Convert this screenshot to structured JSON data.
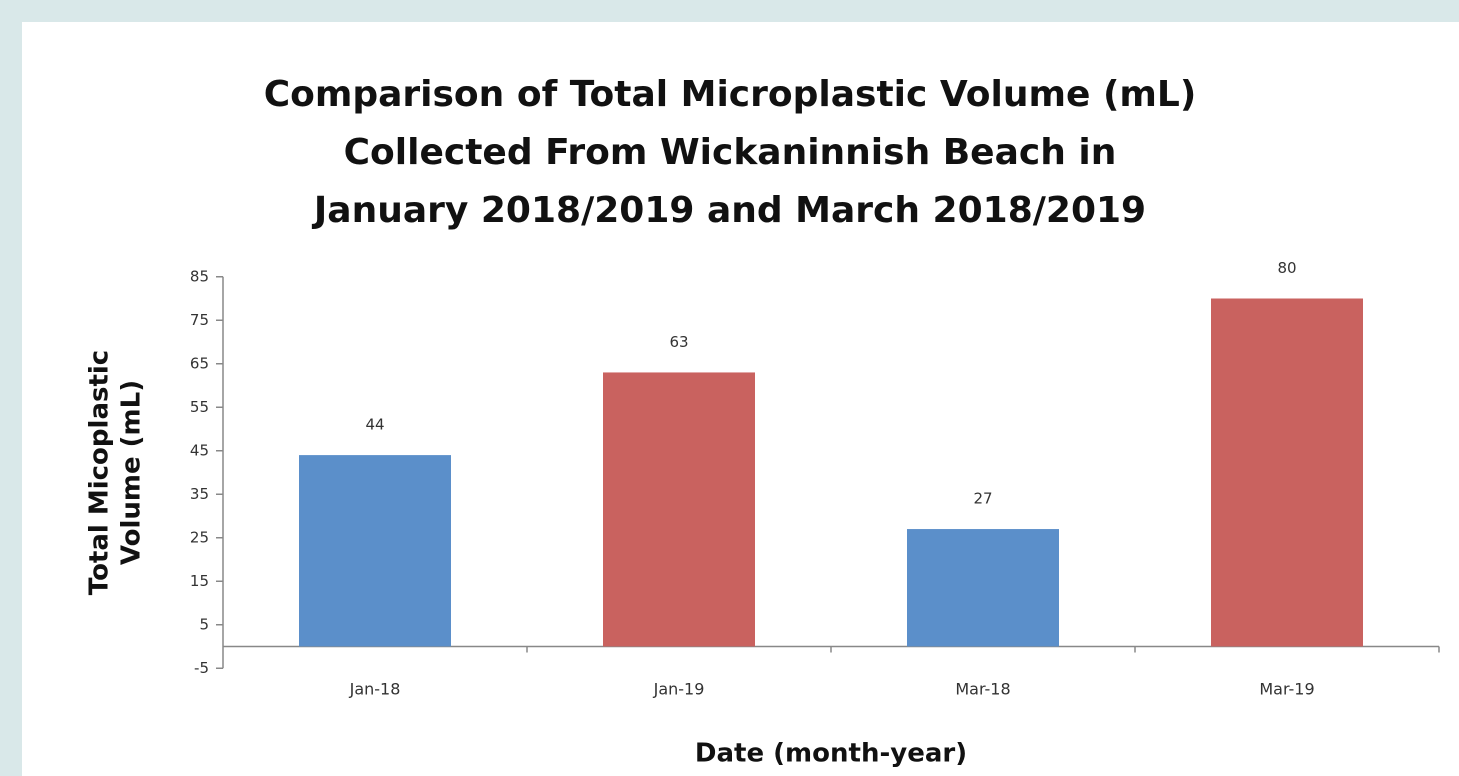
{
  "chart_data": {
    "type": "bar",
    "title": [
      "Comparison of Total Microplastic Volume (mL)",
      "Collected From Wickaninnish Beach in",
      "January 2018/2019 and March 2018/2019"
    ],
    "y_label": [
      "Total Micoplastic",
      "Volume (mL)"
    ],
    "x_label": "Date (month-year)",
    "categories": [
      "Jan-18",
      "Jan-19",
      "Mar-18",
      "Mar-19"
    ],
    "values": [
      44,
      63,
      27,
      80
    ],
    "colors": [
      "#5b8fca",
      "#c9625f",
      "#5b8fca",
      "#c9625f"
    ],
    "ylim": [
      -5,
      85
    ],
    "yticks": [
      -5,
      5,
      15,
      25,
      35,
      45,
      55,
      65,
      75,
      85
    ],
    "grid": false
  }
}
